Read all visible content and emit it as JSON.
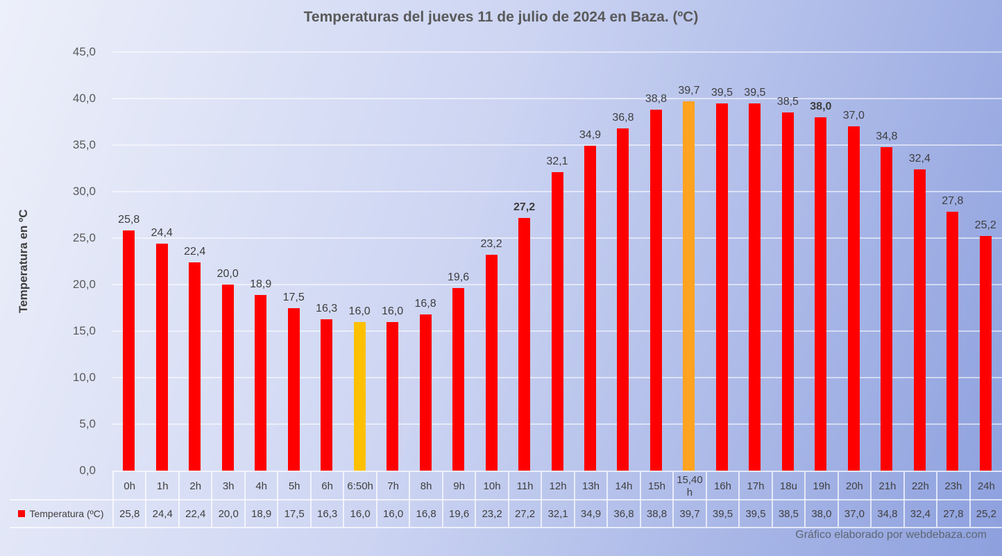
{
  "page": {
    "footer": "Gráfico elaborado por webdebaza.com"
  },
  "chart_data": {
    "type": "bar",
    "title": "Temperaturas del jueves 11 de julio de 2024 en Baza. (ºC)",
    "ylabel": "Temperatura en ºC",
    "ylim": [
      0,
      45
    ],
    "ytick_step": 5,
    "grid": true,
    "legend_position": "bottom-left",
    "legend_label": "Temperatura (ºC)",
    "ytick_values": [
      45,
      40,
      35,
      30,
      25,
      20,
      15,
      10,
      5,
      0
    ],
    "ytick_labels": [
      "45,0",
      "40,0",
      "35,0",
      "30,0",
      "25,0",
      "20,0",
      "15,0",
      "10,0",
      "5,0",
      "0,0"
    ],
    "categories": [
      "0h",
      "1h",
      "2h",
      "3h",
      "4h",
      "5h",
      "6h",
      "6:50h",
      "7h",
      "8h",
      "9h",
      "10h",
      "11h",
      "12h",
      "13h",
      "14h",
      "15h",
      "15,40 h",
      "16h",
      "17h",
      "18u",
      "19h",
      "20h",
      "21h",
      "22h",
      "23h",
      "24h"
    ],
    "series": [
      {
        "name": "Temperatura (ºC)",
        "values": [
          25.8,
          24.4,
          22.4,
          20.0,
          18.9,
          17.5,
          16.3,
          16.0,
          16.0,
          16.8,
          19.6,
          23.2,
          27.2,
          32.1,
          34.9,
          36.8,
          38.8,
          39.7,
          39.5,
          39.5,
          38.5,
          38.0,
          37.0,
          34.8,
          32.4,
          27.8,
          25.2
        ]
      }
    ],
    "value_labels": [
      "25,8",
      "24,4",
      "22,4",
      "20,0",
      "18,9",
      "17,5",
      "16,3",
      "16,0",
      "16,0",
      "16,8",
      "19,6",
      "23,2",
      "27,2",
      "32,1",
      "34,9",
      "36,8",
      "38,8",
      "39,7",
      "39,5",
      "39,5",
      "38,5",
      "38,0",
      "37,0",
      "34,8",
      "32,4",
      "27,8",
      "25,2"
    ],
    "bold_label_indices": [
      12,
      21
    ],
    "bar_color_default": "#fe0000",
    "special_bars": {
      "7": "#ffc000",
      "17": "#ffa320"
    },
    "colors": {
      "red_bar": "#fe0000",
      "min_bar": "#ffc000",
      "max_bar": "#ffa320",
      "text_dark": "#3f3f3f",
      "axis_text": "#595959",
      "gridline": "rgba(255,255,255,0.55)"
    }
  }
}
